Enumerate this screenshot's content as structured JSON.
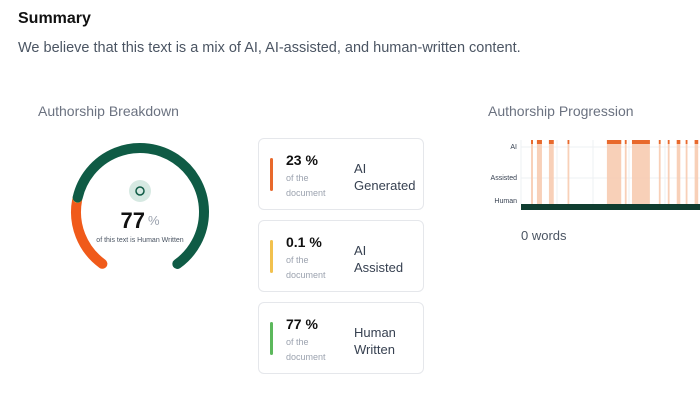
{
  "header": {
    "title": "Summary",
    "description": "We believe that this text is a mix of AI, AI-assisted, and human-written content."
  },
  "breakdown": {
    "title": "Authorship Breakdown",
    "gauge": {
      "value": 77,
      "unit": "%",
      "caption": "of this text is Human Written"
    },
    "cards": [
      {
        "value": 23,
        "unit": "%",
        "sub": "of the document",
        "label": "AI Generated",
        "color": "#e8692c"
      },
      {
        "value": 0.1,
        "unit": "%",
        "sub": "of the document",
        "label": "AI Assisted",
        "color": "#f2c14e"
      },
      {
        "value": 77,
        "unit": "%",
        "sub": "of the document",
        "label": "Human Written",
        "color": "#5cb85c"
      }
    ]
  },
  "progression": {
    "title": "Authorship Progression",
    "rows": [
      "AI",
      "Assisted",
      "Human"
    ],
    "ai_segments": [
      [
        5.6,
        6.7
      ],
      [
        8.9,
        11.7
      ],
      [
        15.6,
        18.3
      ],
      [
        26,
        27
      ],
      [
        48,
        56
      ],
      [
        58,
        59
      ],
      [
        62,
        72
      ],
      [
        77,
        78
      ],
      [
        82,
        83
      ],
      [
        87,
        89
      ],
      [
        92,
        93
      ],
      [
        97,
        99
      ]
    ],
    "footer": "0 words"
  }
}
